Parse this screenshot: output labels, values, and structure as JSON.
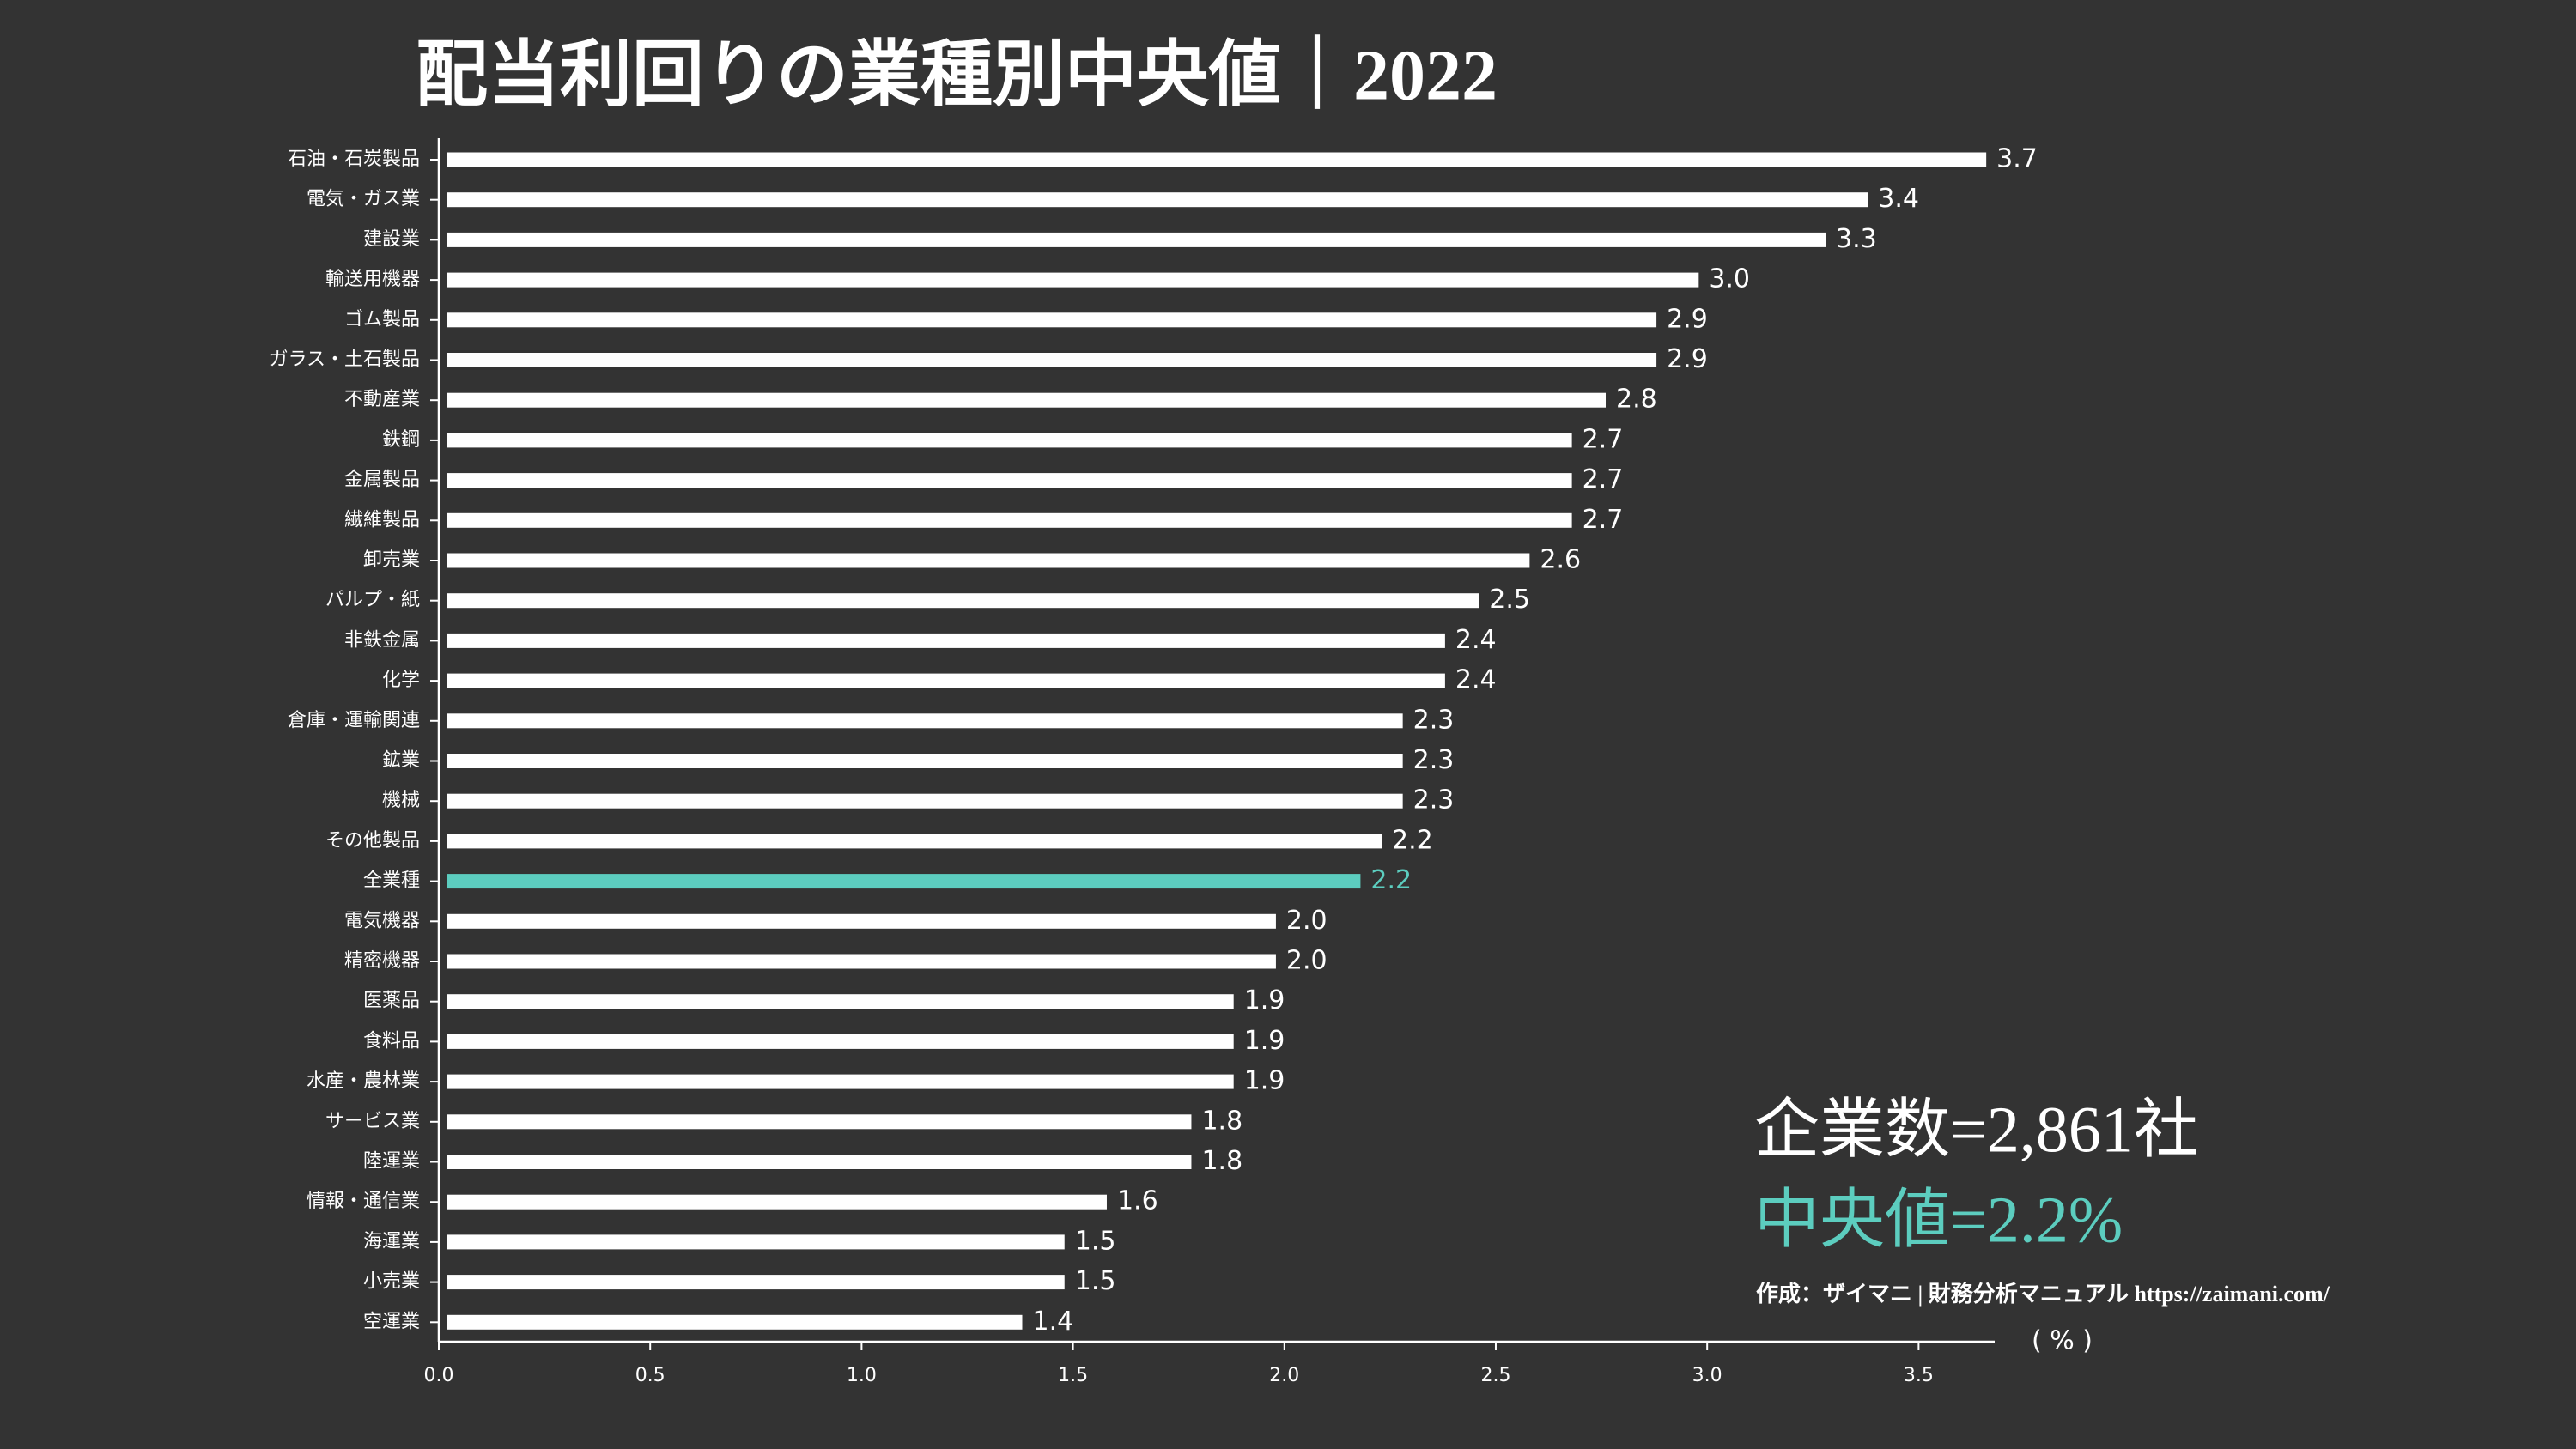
{
  "chart_data": {
    "type": "barh",
    "title": "配当利回りの業種別中央値｜2022",
    "categories": [
      "石油・石炭製品",
      "電気・ガス業",
      "建設業",
      "輸送用機器",
      "ゴム製品",
      "ガラス・土石製品",
      "不動産業",
      "鉄鋼",
      "金属製品",
      "繊維製品",
      "卸売業",
      "パルプ・紙",
      "非鉄金属",
      "化学",
      "倉庫・運輸関連",
      "鉱業",
      "機械",
      "その他製品",
      "全業種",
      "電気機器",
      "精密機器",
      "医薬品",
      "食料品",
      "水産・農林業",
      "サービス業",
      "陸運業",
      "情報・通信業",
      "海運業",
      "小売業",
      "空運業"
    ],
    "values": [
      3.66,
      3.38,
      3.28,
      2.98,
      2.88,
      2.88,
      2.76,
      2.68,
      2.68,
      2.68,
      2.58,
      2.46,
      2.38,
      2.38,
      2.28,
      2.28,
      2.28,
      2.23,
      2.18,
      1.98,
      1.98,
      1.88,
      1.88,
      1.88,
      1.78,
      1.78,
      1.58,
      1.48,
      1.48,
      1.38
    ],
    "value_labels": [
      "3.7",
      "3.4",
      "3.3",
      "3.0",
      "2.9",
      "2.9",
      "2.8",
      "2.7",
      "2.7",
      "2.7",
      "2.6",
      "2.5",
      "2.4",
      "2.4",
      "2.3",
      "2.3",
      "2.3",
      "2.2",
      "2.2",
      "2.0",
      "2.0",
      "1.9",
      "1.9",
      "1.9",
      "1.8",
      "1.8",
      "1.6",
      "1.5",
      "1.5",
      "1.4"
    ],
    "colors": [
      "#ffffff",
      "#ffffff",
      "#ffffff",
      "#ffffff",
      "#ffffff",
      "#ffffff",
      "#ffffff",
      "#ffffff",
      "#ffffff",
      "#ffffff",
      "#ffffff",
      "#ffffff",
      "#ffffff",
      "#ffffff",
      "#ffffff",
      "#ffffff",
      "#ffffff",
      "#ffffff",
      "#5ccdbf",
      "#ffffff",
      "#ffffff",
      "#ffffff",
      "#ffffff",
      "#ffffff",
      "#ffffff",
      "#ffffff",
      "#ffffff",
      "#ffffff",
      "#ffffff",
      "#ffffff"
    ],
    "xlim": [
      0,
      3.68
    ],
    "xticks": [
      {
        "value": 0,
        "label": "0.0"
      },
      0.5,
      {
        "value": 1,
        "label": "1.0"
      },
      1.5,
      {
        "value": 2,
        "label": "2.0"
      },
      2.5,
      {
        "value": 3,
        "label": "3.0"
      },
      3.5
    ],
    "x_label": "( % )",
    "annotations": [
      {
        "text": "企業数=2,861社",
        "color": "#ffffff"
      },
      {
        "text": "中央値=2.2%",
        "color": "#5ccdbf"
      }
    ],
    "source": "作成：ザイマニ | 財務分析マニュアル https://zaimani.com/"
  }
}
